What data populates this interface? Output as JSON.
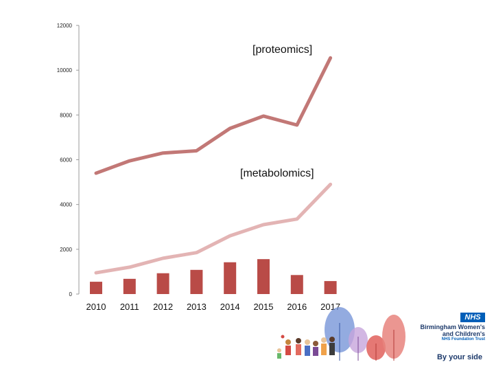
{
  "chart_data": {
    "type": "line",
    "categories": [
      "2010",
      "2011",
      "2012",
      "2013",
      "2014",
      "2015",
      "2016",
      "2017"
    ],
    "ylim": [
      0,
      12000
    ],
    "yticks": [
      "0",
      "2000",
      "4000",
      "6000",
      "8000",
      "10000",
      "12000"
    ],
    "grid": false,
    "series": [
      {
        "name": "[proteomics]",
        "kind": "line",
        "color": "#c27876",
        "values": [
          5400,
          5950,
          6300,
          6400,
          7400,
          7950,
          7550,
          10550
        ]
      },
      {
        "name": "[metabolomics]",
        "kind": "line",
        "color": "#e3b4b4",
        "values": [
          950,
          1200,
          1600,
          1850,
          2600,
          3100,
          3350,
          4900
        ]
      },
      {
        "name": "",
        "kind": "bar",
        "color": "#b94b47",
        "values": [
          550,
          680,
          930,
          1080,
          1420,
          1560,
          850,
          580
        ]
      }
    ]
  },
  "logo": {
    "nhs": "NHS",
    "trust_line1": "Birmingham Women's",
    "trust_line2": "and Children's",
    "trust_line3": "NHS Foundation Trust",
    "tagline": "By your side"
  }
}
